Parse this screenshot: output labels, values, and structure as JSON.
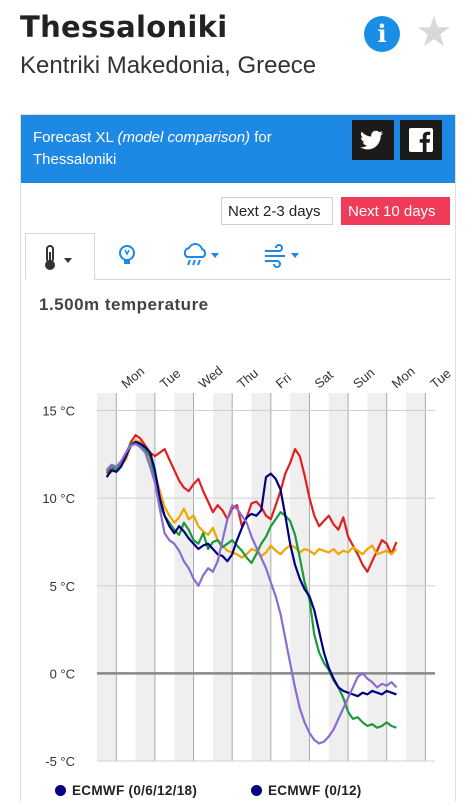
{
  "location": {
    "city": "Thessaloniki",
    "region": "Kentriki Makedonia, Greece"
  },
  "icons": {
    "info": "info-icon",
    "favorite": "star-icon",
    "twitter": "twitter-icon",
    "facebook": "facebook-icon"
  },
  "banner": {
    "prefix": "Forecast XL",
    "italic": "(model comparison)",
    "suffix": "for",
    "city": "Thessaloniki"
  },
  "range_buttons": [
    {
      "label": "Next 2-3 days",
      "active": false
    },
    {
      "label": "Next 10 days",
      "active": true
    }
  ],
  "tabs": [
    {
      "icon": "thermometer-icon",
      "dropdown": true,
      "active": true
    },
    {
      "icon": "lightbulb-icon",
      "dropdown": false,
      "active": false
    },
    {
      "icon": "rain-cloud-icon",
      "dropdown": true,
      "active": false
    },
    {
      "icon": "wind-icon",
      "dropdown": true,
      "active": false
    }
  ],
  "colors": {
    "accent": "#1e88e5",
    "active_range": "#ef3b59",
    "info": "#1a8ee6"
  },
  "chart_data": {
    "type": "line",
    "title": "1.500m temperature",
    "ylim": [
      -5,
      16
    ],
    "yticks": [
      15,
      10,
      5,
      0,
      -5
    ],
    "ytick_labels": [
      "15 °C",
      "10 °C",
      "5 °C",
      "0 °C",
      "-5 °C"
    ],
    "xlim": [
      -6,
      180
    ],
    "day_labels": [
      {
        "label": "Mon",
        "x": 12
      },
      {
        "label": "Tue",
        "x": 36
      },
      {
        "label": "Wed",
        "x": 60
      },
      {
        "label": "Thu",
        "x": 84
      },
      {
        "label": "Fri",
        "x": 108
      },
      {
        "label": "Sat",
        "x": 132
      },
      {
        "label": "Sun",
        "x": 156
      },
      {
        "label": "Mon",
        "x": 180
      },
      {
        "label": "Tue",
        "x": 204
      }
    ],
    "series": [
      {
        "color": "#e02020",
        "x": [
          0,
          3,
          6,
          9,
          12,
          15,
          18,
          21,
          24,
          27,
          30,
          33,
          36,
          39,
          42,
          45,
          48,
          51,
          54,
          57,
          60,
          63,
          66,
          69,
          72,
          75,
          78,
          81,
          84,
          87,
          90,
          93,
          96,
          99,
          102,
          105,
          108,
          111,
          114,
          117,
          120,
          123,
          126,
          129,
          132,
          135,
          138,
          141,
          144,
          147,
          150,
          153,
          156,
          159,
          162,
          165,
          168,
          171,
          174,
          177,
          180
        ],
        "y": [
          11.4,
          11.6,
          11.8,
          12.0,
          12.4,
          13.2,
          13.6,
          13.4,
          13.0,
          12.6,
          12.4,
          12.6,
          12.8,
          12.2,
          11.6,
          11.0,
          10.6,
          10.4,
          10.8,
          11.1,
          10.4,
          9.8,
          9.2,
          9.6,
          9.3,
          8.8,
          9.4,
          9.6,
          8.4,
          8.9,
          9.7,
          9.8,
          9.5,
          9.0,
          8.8,
          9.6,
          10.4,
          11.4,
          12.0,
          12.8,
          12.4,
          11.3,
          10.0,
          9.0,
          8.4,
          8.7,
          9.0,
          8.5,
          8.2,
          8.9,
          7.8,
          7.3,
          6.8,
          6.2,
          5.8,
          6.4,
          7.0,
          7.6,
          7.4,
          6.8,
          7.5
        ]
      },
      {
        "color": "#f0a500",
        "x": [
          0,
          3,
          6,
          9,
          12,
          15,
          18,
          21,
          24,
          27,
          30,
          33,
          36,
          39,
          42,
          45,
          48,
          51,
          54,
          57,
          60,
          63,
          66,
          69,
          72,
          75,
          78,
          81,
          84,
          87,
          90,
          93,
          96,
          99,
          102,
          105,
          108,
          111,
          114,
          117,
          120,
          123,
          126,
          129,
          132,
          135,
          138,
          141,
          144,
          147,
          150,
          153,
          156,
          159,
          162,
          165,
          168,
          171,
          174,
          177,
          180
        ],
        "y": [
          11.3,
          11.5,
          11.7,
          11.9,
          12.2,
          13.0,
          13.3,
          13.2,
          12.8,
          12.2,
          11.4,
          10.4,
          9.5,
          9.0,
          8.6,
          8.9,
          9.4,
          8.8,
          9.0,
          8.4,
          8.1,
          7.9,
          8.3,
          7.6,
          7.3,
          7.0,
          6.9,
          6.8,
          6.6,
          6.8,
          7.1,
          7.0,
          6.7,
          6.9,
          7.3,
          7.0,
          6.8,
          7.1,
          7.3,
          7.2,
          6.9,
          7.1,
          7.0,
          6.8,
          7.1,
          7.0,
          6.9,
          7.1,
          6.8,
          7.0,
          6.9,
          7.2,
          7.0,
          6.8,
          7.1,
          7.3,
          6.8,
          6.9,
          7.0,
          6.8,
          7.1
        ]
      },
      {
        "color": "#1a9a3a",
        "x": [
          0,
          3,
          6,
          9,
          12,
          15,
          18,
          21,
          24,
          27,
          30,
          33,
          36,
          39,
          42,
          45,
          48,
          51,
          54,
          57,
          60,
          63,
          66,
          69,
          72,
          75,
          78,
          81,
          84,
          87,
          90,
          93,
          96,
          99,
          102,
          105,
          108,
          111,
          114,
          117,
          120,
          123,
          126,
          129,
          132,
          135,
          138,
          141,
          144,
          147,
          150,
          153,
          156,
          159,
          162,
          165,
          168,
          171,
          174,
          177,
          180
        ],
        "y": [
          11.5,
          11.8,
          11.6,
          12.0,
          12.6,
          13.1,
          13.2,
          13.0,
          12.7,
          12.4,
          11.2,
          9.6,
          9.0,
          8.6,
          8.2,
          7.9,
          8.6,
          8.2,
          7.6,
          7.4,
          8.0,
          7.1,
          7.5,
          7.6,
          7.2,
          7.4,
          7.6,
          7.3,
          7.0,
          6.6,
          6.3,
          6.8,
          7.4,
          7.8,
          8.4,
          8.8,
          9.2,
          9.0,
          8.7,
          7.9,
          6.6,
          5.2,
          4.2,
          2.2,
          1.2,
          0.6,
          0.2,
          -0.4,
          -0.8,
          -1.4,
          -2.2,
          -2.6,
          -2.5,
          -2.8,
          -3.0,
          -2.9,
          -3.1,
          -3.0,
          -2.8,
          -3.0,
          -3.1
        ]
      },
      {
        "color": "#000080",
        "x": [
          0,
          3,
          6,
          9,
          12,
          15,
          18,
          21,
          24,
          27,
          30,
          33,
          36,
          39,
          42,
          45,
          48,
          51,
          54,
          57,
          60,
          63,
          66,
          69,
          72,
          75,
          78,
          81,
          84,
          87,
          90,
          93,
          96,
          99,
          102,
          105,
          108,
          111,
          114,
          117,
          120,
          123,
          126,
          129,
          132,
          135,
          138,
          141,
          144,
          147,
          150,
          153,
          156,
          159,
          162,
          165,
          168,
          171,
          174,
          177,
          180
        ],
        "y": [
          11.2,
          11.6,
          11.5,
          11.8,
          12.4,
          13.0,
          13.2,
          13.1,
          12.9,
          12.6,
          11.6,
          10.0,
          9.0,
          8.4,
          8.0,
          8.4,
          8.1,
          7.7,
          7.4,
          7.1,
          7.3,
          7.4,
          7.1,
          6.8,
          6.7,
          6.4,
          6.8,
          7.6,
          8.3,
          8.9,
          9.1,
          9.0,
          9.3,
          11.2,
          11.4,
          11.1,
          10.5,
          9.0,
          7.4,
          6.2,
          5.4,
          4.8,
          4.4,
          3.6,
          2.4,
          1.2,
          0.3,
          -0.3,
          -0.8,
          -1.0,
          -1.1,
          -1.2,
          -1.3,
          -1.1,
          -1.2,
          -1.0,
          -1.1,
          -1.2,
          -1.0,
          -1.1,
          -1.2
        ]
      },
      {
        "color": "#8a6ccf",
        "x": [
          0,
          3,
          6,
          9,
          12,
          15,
          18,
          21,
          24,
          27,
          30,
          33,
          36,
          39,
          42,
          45,
          48,
          51,
          54,
          57,
          60,
          63,
          66,
          69,
          72,
          75,
          78,
          81,
          84,
          87,
          90,
          93,
          96,
          99,
          102,
          105,
          108,
          111,
          114,
          117,
          120,
          123,
          126,
          129,
          132,
          135,
          138,
          141,
          144,
          147,
          150,
          153,
          156,
          159,
          162,
          165,
          168,
          171,
          174,
          177,
          180
        ],
        "y": [
          11.6,
          11.9,
          11.8,
          12.1,
          12.6,
          13.0,
          13.1,
          12.9,
          12.6,
          11.8,
          10.9,
          9.4,
          8.0,
          7.6,
          7.4,
          7.0,
          6.4,
          6.0,
          5.4,
          5.0,
          5.6,
          6.0,
          5.8,
          6.4,
          7.6,
          8.8,
          9.6,
          9.4,
          9.0,
          8.6,
          7.8,
          7.2,
          6.6,
          6.0,
          5.2,
          4.4,
          3.4,
          2.0,
          0.6,
          -0.8,
          -2.0,
          -2.8,
          -3.4,
          -3.8,
          -4.0,
          -3.9,
          -3.6,
          -3.2,
          -2.6,
          -2.0,
          -1.4,
          -0.8,
          -0.2,
          0.0,
          -0.3,
          -0.5,
          -0.8,
          -0.6,
          -0.7,
          -0.5,
          -0.8
        ]
      }
    ]
  },
  "legend": [
    {
      "label": "ECMWF (0/6/12/18)",
      "color": "#000080"
    },
    {
      "label": "ECMWF (0/12)",
      "color": "#000080"
    }
  ]
}
